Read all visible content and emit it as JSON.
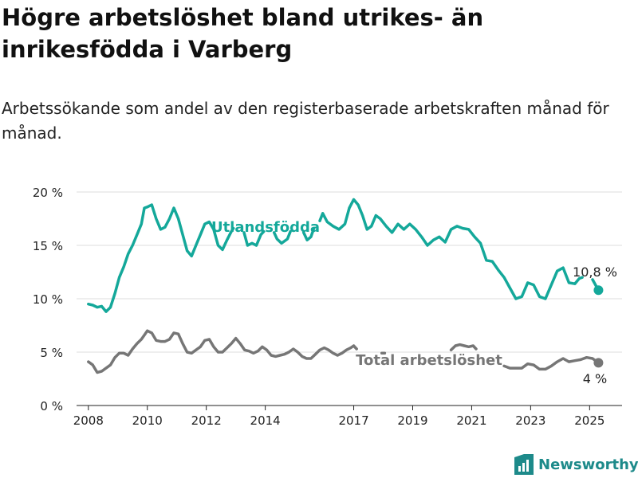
{
  "title": "Högre arbetslöshet bland utrikes- än inrikesfödda i Varberg",
  "subtitle": "Arbetssökande som andel av den registerbaserade arbetskraften månad för månad.",
  "brand": "Newsworthy",
  "colors": {
    "foreign": "#14a89a",
    "total": "#767676",
    "axis": "#222222",
    "grid": "#dddddd",
    "brand": "#1d8a8a"
  },
  "chart_data": {
    "type": "line",
    "xlim": [
      2007.6,
      2026.1
    ],
    "ylim": [
      0,
      20
    ],
    "x_ticks": [
      2008,
      2010,
      2012,
      2014,
      2017,
      2019,
      2021,
      2023,
      2025
    ],
    "x_tick_labels": [
      "2008",
      "2010",
      "2012",
      "2014",
      "2017",
      "2019",
      "2021",
      "2023",
      "2025"
    ],
    "y_ticks": [
      0,
      5,
      10,
      15,
      20
    ],
    "y_tick_labels": [
      "0 %",
      "5 %",
      "10 %",
      "15 %",
      "20 %"
    ],
    "grid": "horizontal",
    "series": [
      {
        "name": "Utlandsfödda",
        "end_label": "10,8 %",
        "color": "#14a89a",
        "points": [
          [
            2008.0,
            9.5
          ],
          [
            2008.15,
            9.4
          ],
          [
            2008.3,
            9.2
          ],
          [
            2008.45,
            9.3
          ],
          [
            2008.6,
            8.8
          ],
          [
            2008.75,
            9.2
          ],
          [
            2008.9,
            10.5
          ],
          [
            2009.05,
            12.0
          ],
          [
            2009.2,
            13.0
          ],
          [
            2009.35,
            14.2
          ],
          [
            2009.5,
            15.0
          ],
          [
            2009.65,
            16.0
          ],
          [
            2009.8,
            17.0
          ],
          [
            2009.9,
            18.5
          ],
          [
            2010.0,
            18.6
          ],
          [
            2010.15,
            18.8
          ],
          [
            2010.3,
            17.5
          ],
          [
            2010.45,
            16.5
          ],
          [
            2010.6,
            16.7
          ],
          [
            2010.75,
            17.5
          ],
          [
            2010.9,
            18.5
          ],
          [
            2011.05,
            17.5
          ],
          [
            2011.2,
            16.0
          ],
          [
            2011.35,
            14.5
          ],
          [
            2011.5,
            14.0
          ],
          [
            2011.65,
            15.0
          ],
          [
            2011.8,
            16.0
          ],
          [
            2011.95,
            17.0
          ],
          [
            2012.1,
            17.2
          ],
          [
            2012.25,
            16.5
          ],
          [
            2012.4,
            15.0
          ],
          [
            2012.55,
            14.6
          ],
          [
            2012.7,
            15.5
          ],
          [
            2012.85,
            16.3
          ],
          [
            2012.92,
            16.6
          ],
          null,
          [
            2013.28,
            16.2
          ],
          [
            2013.4,
            15.0
          ],
          [
            2013.55,
            15.2
          ],
          [
            2013.7,
            15.0
          ],
          [
            2013.85,
            16.0
          ],
          [
            2013.95,
            16.3
          ],
          null,
          [
            2014.3,
            16.2
          ],
          [
            2014.4,
            15.6
          ],
          [
            2014.55,
            15.2
          ],
          [
            2014.75,
            15.6
          ],
          [
            2014.85,
            16.3
          ],
          null,
          [
            2015.3,
            16.2
          ],
          [
            2015.42,
            15.5
          ],
          [
            2015.55,
            15.8
          ],
          [
            2015.65,
            16.6
          ],
          null,
          [
            2015.85,
            17.3
          ],
          [
            2015.95,
            18.0
          ],
          [
            2016.1,
            17.2
          ],
          [
            2016.3,
            16.8
          ],
          [
            2016.5,
            16.5
          ],
          [
            2016.7,
            17.0
          ],
          [
            2016.85,
            18.5
          ],
          [
            2017.0,
            19.3
          ],
          [
            2017.15,
            18.8
          ],
          [
            2017.3,
            17.8
          ],
          [
            2017.45,
            16.5
          ],
          [
            2017.6,
            16.8
          ],
          [
            2017.75,
            17.8
          ],
          [
            2017.9,
            17.5
          ],
          [
            2018.1,
            16.8
          ],
          [
            2018.3,
            16.2
          ],
          [
            2018.5,
            17.0
          ],
          [
            2018.7,
            16.5
          ],
          [
            2018.9,
            17.0
          ],
          [
            2019.1,
            16.5
          ],
          [
            2019.3,
            15.8
          ],
          [
            2019.5,
            15.0
          ],
          [
            2019.7,
            15.5
          ],
          [
            2019.9,
            15.8
          ],
          [
            2020.1,
            15.3
          ],
          [
            2020.3,
            16.5
          ],
          [
            2020.5,
            16.8
          ],
          [
            2020.7,
            16.6
          ],
          [
            2020.9,
            16.5
          ],
          [
            2021.1,
            15.8
          ],
          [
            2021.3,
            15.2
          ],
          [
            2021.5,
            13.6
          ],
          [
            2021.7,
            13.5
          ],
          [
            2021.9,
            12.7
          ],
          [
            2022.1,
            12.0
          ],
          [
            2022.3,
            11.0
          ],
          [
            2022.5,
            10.0
          ],
          [
            2022.7,
            10.2
          ],
          [
            2022.9,
            11.5
          ],
          [
            2023.1,
            11.3
          ],
          [
            2023.3,
            10.2
          ],
          [
            2023.5,
            10.0
          ],
          [
            2023.7,
            11.3
          ],
          [
            2023.9,
            12.6
          ],
          [
            2024.1,
            12.9
          ],
          [
            2024.3,
            11.5
          ],
          [
            2024.5,
            11.4
          ],
          [
            2024.65,
            11.9
          ],
          [
            2024.75,
            12.0
          ],
          null,
          [
            2025.1,
            11.8
          ],
          [
            2025.2,
            11.3
          ],
          [
            2025.3,
            10.8
          ]
        ]
      },
      {
        "name": "Total arbetslöshet",
        "end_label": "4 %",
        "color": "#767676",
        "points": [
          [
            2008.0,
            4.1
          ],
          [
            2008.15,
            3.8
          ],
          [
            2008.3,
            3.1
          ],
          [
            2008.45,
            3.2
          ],
          [
            2008.6,
            3.5
          ],
          [
            2008.75,
            3.8
          ],
          [
            2008.9,
            4.5
          ],
          [
            2009.05,
            4.9
          ],
          [
            2009.2,
            4.9
          ],
          [
            2009.35,
            4.7
          ],
          [
            2009.5,
            5.3
          ],
          [
            2009.65,
            5.8
          ],
          [
            2009.8,
            6.2
          ],
          [
            2009.9,
            6.6
          ],
          [
            2010.0,
            7.0
          ],
          [
            2010.15,
            6.8
          ],
          [
            2010.3,
            6.1
          ],
          [
            2010.45,
            6.0
          ],
          [
            2010.6,
            6.0
          ],
          [
            2010.75,
            6.2
          ],
          [
            2010.9,
            6.8
          ],
          [
            2011.05,
            6.7
          ],
          [
            2011.2,
            5.8
          ],
          [
            2011.35,
            5.0
          ],
          [
            2011.5,
            4.9
          ],
          [
            2011.65,
            5.2
          ],
          [
            2011.8,
            5.5
          ],
          [
            2011.95,
            6.1
          ],
          [
            2012.1,
            6.2
          ],
          [
            2012.25,
            5.5
          ],
          [
            2012.4,
            5.0
          ],
          [
            2012.55,
            5.0
          ],
          [
            2012.7,
            5.4
          ],
          [
            2012.85,
            5.8
          ],
          [
            2013.0,
            6.3
          ],
          [
            2013.15,
            5.8
          ],
          [
            2013.3,
            5.2
          ],
          [
            2013.45,
            5.1
          ],
          [
            2013.6,
            4.9
          ],
          [
            2013.75,
            5.1
          ],
          [
            2013.9,
            5.5
          ],
          [
            2014.05,
            5.2
          ],
          [
            2014.2,
            4.7
          ],
          [
            2014.35,
            4.6
          ],
          [
            2014.5,
            4.7
          ],
          [
            2014.65,
            4.8
          ],
          [
            2014.8,
            5.0
          ],
          [
            2014.95,
            5.3
          ],
          [
            2015.1,
            5.0
          ],
          [
            2015.25,
            4.6
          ],
          [
            2015.4,
            4.4
          ],
          [
            2015.55,
            4.4
          ],
          [
            2015.7,
            4.8
          ],
          [
            2015.85,
            5.2
          ],
          [
            2016.0,
            5.4
          ],
          [
            2016.15,
            5.2
          ],
          [
            2016.3,
            4.9
          ],
          [
            2016.45,
            4.7
          ],
          [
            2016.6,
            4.9
          ],
          [
            2016.75,
            5.2
          ],
          [
            2016.9,
            5.4
          ],
          [
            2017.0,
            5.6
          ],
          [
            2017.1,
            5.3
          ],
          null,
          [
            2017.95,
            4.9
          ],
          [
            2018.05,
            4.9
          ],
          null,
          [
            2020.3,
            5.2
          ],
          [
            2020.45,
            5.6
          ],
          [
            2020.6,
            5.7
          ],
          [
            2020.75,
            5.6
          ],
          [
            2020.9,
            5.5
          ],
          [
            2021.05,
            5.6
          ],
          [
            2021.15,
            5.3
          ],
          null,
          [
            2022.1,
            3.7
          ],
          [
            2022.3,
            3.5
          ],
          [
            2022.5,
            3.5
          ],
          [
            2022.7,
            3.5
          ],
          [
            2022.9,
            3.9
          ],
          [
            2023.1,
            3.8
          ],
          [
            2023.3,
            3.4
          ],
          [
            2023.5,
            3.4
          ],
          [
            2023.7,
            3.7
          ],
          [
            2023.9,
            4.1
          ],
          [
            2024.1,
            4.4
          ],
          [
            2024.3,
            4.1
          ],
          [
            2024.5,
            4.2
          ],
          [
            2024.7,
            4.3
          ],
          [
            2024.9,
            4.5
          ],
          [
            2025.1,
            4.4
          ],
          [
            2025.3,
            4.0
          ]
        ]
      }
    ]
  }
}
